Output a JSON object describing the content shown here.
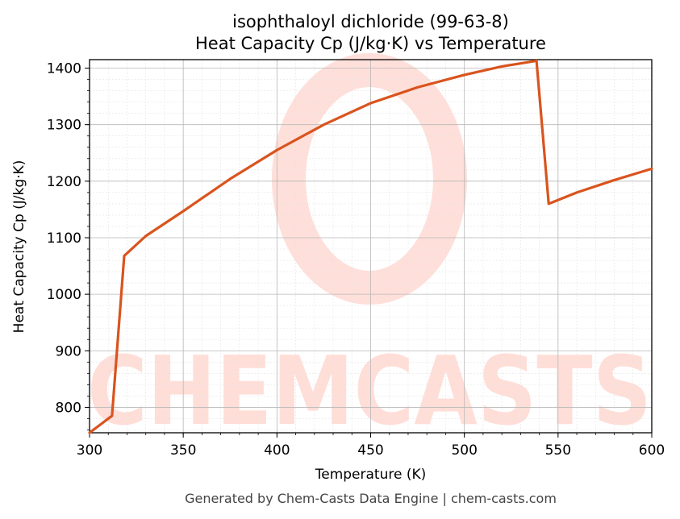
{
  "chart_data": {
    "type": "line",
    "title_line1": "isophthaloyl dichloride (99-63-8)",
    "title_line2": "Heat Capacity Cp (J/kg·K) vs Temperature",
    "xlabel": "Temperature (K)",
    "ylabel": "Heat Capacity Cp (J/kg·K)",
    "xlim": [
      300,
      600
    ],
    "ylim": [
      755,
      1415
    ],
    "xticks": [
      300,
      350,
      400,
      450,
      500,
      550,
      600
    ],
    "yticks": [
      800,
      900,
      1000,
      1100,
      1200,
      1300,
      1400
    ],
    "grid": true,
    "series": [
      {
        "color": "#d9541e",
        "x": [
          300,
          312,
          318.5,
          330,
          350,
          375,
          400,
          425,
          450,
          475,
          500,
          520,
          538.5,
          545,
          560,
          580,
          600
        ],
        "y": [
          755,
          785,
          1068,
          1103,
          1147,
          1204,
          1255,
          1300,
          1338,
          1366,
          1388,
          1403,
          1413,
          1160,
          1180,
          1202,
          1222
        ]
      }
    ]
  },
  "footer": "Generated by Chem-Casts Data Engine | chem-casts.com",
  "watermark_text": "CHEMCASTS"
}
